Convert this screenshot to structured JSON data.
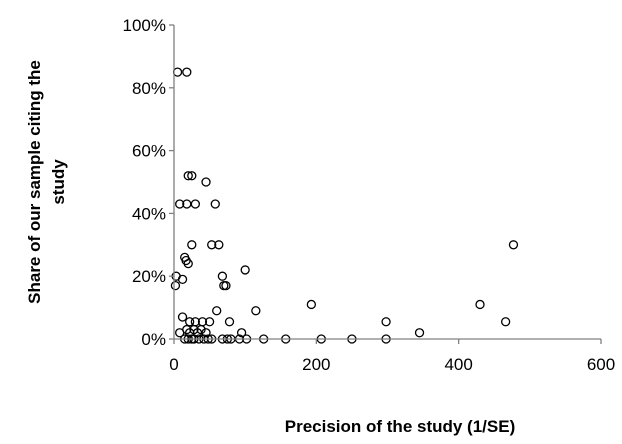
{
  "chart_data": {
    "type": "scatter",
    "xlabel": "Precision of the study (1/SE)",
    "ylabel_lines": [
      "Share of our sample citing the",
      "study"
    ],
    "xlim": [
      0,
      600
    ],
    "ylim": [
      0,
      1
    ],
    "x_ticks": [
      0,
      200,
      400,
      600
    ],
    "y_ticks": [
      0,
      0.2,
      0.4,
      0.6,
      0.8,
      1.0
    ],
    "x_tick_labels": [
      "0",
      "200",
      "400",
      "600"
    ],
    "y_tick_labels": [
      "0%",
      "20%",
      "40%",
      "60%",
      "80%",
      "100%"
    ],
    "grid": false,
    "marker": "open-circle",
    "marker_color": "#000000",
    "axis_color": "#808080",
    "points": [
      [
        5,
        0.85
      ],
      [
        18,
        0.85
      ],
      [
        20,
        0.52
      ],
      [
        25,
        0.52
      ],
      [
        45,
        0.5
      ],
      [
        8,
        0.43
      ],
      [
        18,
        0.43
      ],
      [
        30,
        0.43
      ],
      [
        58,
        0.43
      ],
      [
        25,
        0.3
      ],
      [
        53,
        0.3
      ],
      [
        63,
        0.3
      ],
      [
        477,
        0.3
      ],
      [
        15,
        0.26
      ],
      [
        17,
        0.25
      ],
      [
        20,
        0.24
      ],
      [
        100,
        0.22
      ],
      [
        3,
        0.2
      ],
      [
        68,
        0.2
      ],
      [
        12,
        0.19
      ],
      [
        2,
        0.17
      ],
      [
        70,
        0.17
      ],
      [
        73,
        0.17
      ],
      [
        193,
        0.11
      ],
      [
        430,
        0.11
      ],
      [
        60,
        0.09
      ],
      [
        115,
        0.09
      ],
      [
        12,
        0.07
      ],
      [
        22,
        0.055
      ],
      [
        30,
        0.055
      ],
      [
        40,
        0.055
      ],
      [
        50,
        0.055
      ],
      [
        78,
        0.055
      ],
      [
        298,
        0.055
      ],
      [
        466,
        0.055
      ],
      [
        18,
        0.03
      ],
      [
        28,
        0.03
      ],
      [
        38,
        0.03
      ],
      [
        8,
        0.02
      ],
      [
        22,
        0.02
      ],
      [
        33,
        0.02
      ],
      [
        45,
        0.02
      ],
      [
        95,
        0.02
      ],
      [
        345,
        0.02
      ],
      [
        15,
        0.0
      ],
      [
        20,
        0.0
      ],
      [
        25,
        0.0
      ],
      [
        28,
        0.0
      ],
      [
        35,
        0.0
      ],
      [
        42,
        0.0
      ],
      [
        48,
        0.0
      ],
      [
        53,
        0.0
      ],
      [
        68,
        0.0
      ],
      [
        75,
        0.0
      ],
      [
        80,
        0.0
      ],
      [
        92,
        0.0
      ],
      [
        102,
        0.0
      ],
      [
        126,
        0.0
      ],
      [
        157,
        0.0
      ],
      [
        207,
        0.0
      ],
      [
        250,
        0.0
      ],
      [
        298,
        0.0
      ]
    ]
  }
}
